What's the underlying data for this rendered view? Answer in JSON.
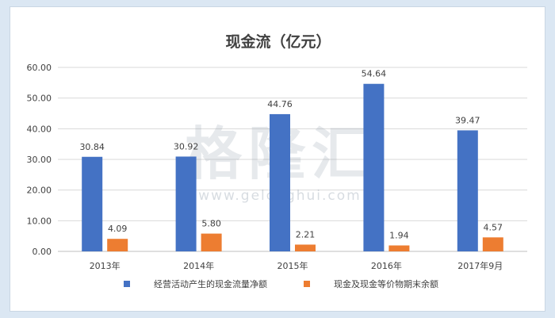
{
  "chart_data": {
    "type": "bar",
    "title": "现金流（亿元）",
    "categories": [
      "2013年",
      "2014年",
      "2015年",
      "2016年",
      "2017年9月"
    ],
    "series": [
      {
        "name": "经营活动产生的现金流量净额",
        "values": [
          30.84,
          30.92,
          44.76,
          54.64,
          39.47
        ],
        "labels": [
          "30.84",
          "30.92",
          "44.76",
          "54.64",
          "39.47"
        ],
        "color": "#4472c4"
      },
      {
        "name": "现金及现金等价物期末余额",
        "values": [
          4.09,
          5.8,
          2.21,
          1.94,
          4.57
        ],
        "labels": [
          "4.09",
          "5.80",
          "2.21",
          "1.94",
          "4.57"
        ],
        "color": "#ed7d31"
      }
    ],
    "yticks": [
      "0.00",
      "10.00",
      "20.00",
      "30.00",
      "40.00",
      "50.00",
      "60.00"
    ],
    "ylim": [
      0,
      60
    ],
    "grid": true,
    "legend": "bottom"
  },
  "watermark": {
    "text": "格隆汇",
    "url": "www.gelonghui.com"
  },
  "colors": {
    "background": "#dbe7f3",
    "grid": "#d9d9d9",
    "text": "#404040"
  }
}
